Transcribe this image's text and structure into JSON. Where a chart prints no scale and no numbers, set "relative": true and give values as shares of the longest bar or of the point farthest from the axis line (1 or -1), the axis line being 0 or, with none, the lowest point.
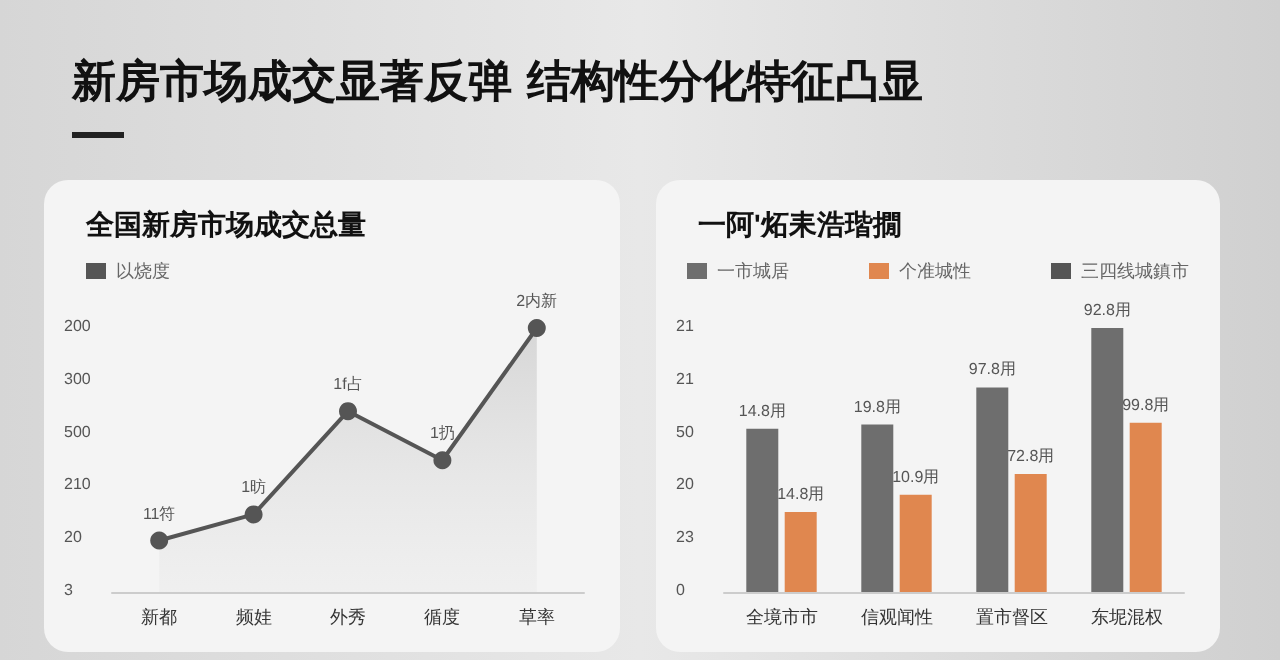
{
  "chart_data": [
    {
      "type": "area",
      "relative": true,
      "title": "新房市场成交显著反弹 结构性分化特征凸显",
      "subtitle": "全国新房市场成交总量",
      "categories": [
        "新都",
        "频娃",
        "外秀",
        "循度",
        "草率"
      ],
      "series": [
        {
          "name": "以烧度",
          "color": "#555555",
          "values": [
            0.195,
            0.294,
            0.685,
            0.499,
            1
          ]
        }
      ],
      "annotations": [
        "200",
        "300",
        "500",
        "210",
        "20",
        "3",
        {
          "text": "11符",
          "x": "新都",
          "y": 0.195
        },
        {
          "text": "1昉",
          "x": "频娃",
          "y": 0.294
        },
        {
          "text": "1f占",
          "x": "外秀",
          "y": 0.685
        },
        {
          "text": "1扔",
          "x": "循度",
          "y": 0.499
        },
        {
          "text": "2内新",
          "x": "草率",
          "y": 1
        }
      ],
      "legend": "top left",
      "marker": "circle"
    },
    {
      "type": "bar",
      "relative": true,
      "title": "一阿'炻耒浩瑎撊",
      "categories": [
        "全境市市",
        "信观闻性",
        "置市督区",
        "东坭混权"
      ],
      "series": [
        {
          "name": "一市城居",
          "color": "#6e6e6e",
          "values": [
            0.618,
            0.634,
            0.775,
            1
          ]
        },
        {
          "name": "个准城性",
          "color": "#e0874f",
          "values": [
            0.303,
            0.368,
            0.447,
            0.641
          ]
        },
        {
          "name": "三四线城鎮市",
          "type": "line",
          "color": "#555555",
          "values": [
            null,
            null,
            null,
            null
          ]
        }
      ],
      "annotations": [
        "21",
        "21",
        "50",
        "20",
        "23",
        "0",
        {
          "text": "14.8用",
          "x": "全境市市",
          "y": 0.618
        },
        {
          "text": "19.8用",
          "x": "信观闻性",
          "y": 0.634
        },
        {
          "text": "97.8用",
          "x": "置市督区",
          "y": 0.775
        },
        {
          "text": "92.8用",
          "x": "东坭混权",
          "y": 1
        },
        {
          "text": "14.8用",
          "x": "全境市市",
          "y": 0.303
        },
        {
          "text": "10.9用",
          "x": "信观闻性",
          "y": 0.368
        },
        {
          "text": "72.8用",
          "x": "置市督区",
          "y": 0.447
        },
        {
          "text": "99.8用",
          "x": "东坭混权",
          "y": 0.641
        }
      ],
      "legend": "top"
    }
  ]
}
